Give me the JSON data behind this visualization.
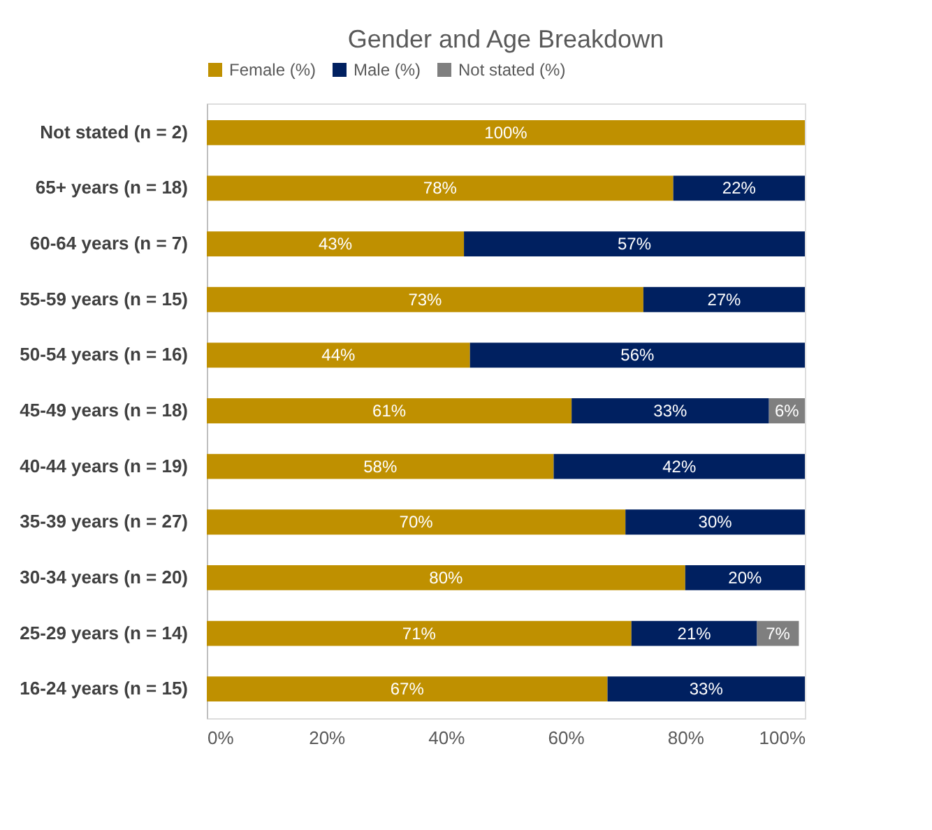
{
  "chart_data": {
    "type": "bar",
    "orientation": "horizontal",
    "stacked": true,
    "title": "Gender and Age Breakdown",
    "categories": [
      "Not stated (n = 2)",
      "65+ years (n = 18)",
      "60-64 years (n = 7)",
      "55-59 years (n = 15)",
      "50-54 years (n = 16)",
      "45-49 years (n = 18)",
      "40-44 years (n = 19)",
      "35-39 years (n = 27)",
      "30-34 years (n = 20)",
      "25-29 years  (n = 14)",
      "16-24 years (n = 15)"
    ],
    "series": [
      {
        "name": "Female (%)",
        "color": "#bf9000",
        "values": [
          100,
          78,
          43,
          73,
          44,
          61,
          58,
          70,
          80,
          71,
          67
        ],
        "value_labels": [
          "100%",
          "78%",
          "43%",
          "73%",
          "44%",
          "61%",
          "58%",
          "70%",
          "80%",
          "71%",
          "67%"
        ]
      },
      {
        "name": "Male (%)",
        "color": "#002060",
        "values": [
          null,
          22,
          57,
          27,
          56,
          33,
          42,
          30,
          20,
          21,
          33
        ],
        "value_labels": [
          null,
          "22%",
          "57%",
          "27%",
          "56%",
          "33%",
          "42%",
          "30%",
          "20%",
          "21%",
          "33%"
        ]
      },
      {
        "name": "Not stated (%)",
        "color": "#7f7f7f",
        "values": [
          null,
          null,
          null,
          null,
          null,
          6,
          null,
          null,
          null,
          7,
          null
        ],
        "value_labels": [
          null,
          null,
          null,
          null,
          null,
          "6%",
          null,
          null,
          null,
          "7%",
          null
        ]
      }
    ],
    "xlim": [
      0,
      100
    ],
    "xticks": [
      {
        "value": 0,
        "label": "0%"
      },
      {
        "value": 20,
        "label": "20%"
      },
      {
        "value": 40,
        "label": "40%"
      },
      {
        "value": 60,
        "label": "60%"
      },
      {
        "value": 80,
        "label": "80%"
      },
      {
        "value": 100,
        "label": "100%"
      }
    ],
    "legend": "top",
    "grid": false
  }
}
